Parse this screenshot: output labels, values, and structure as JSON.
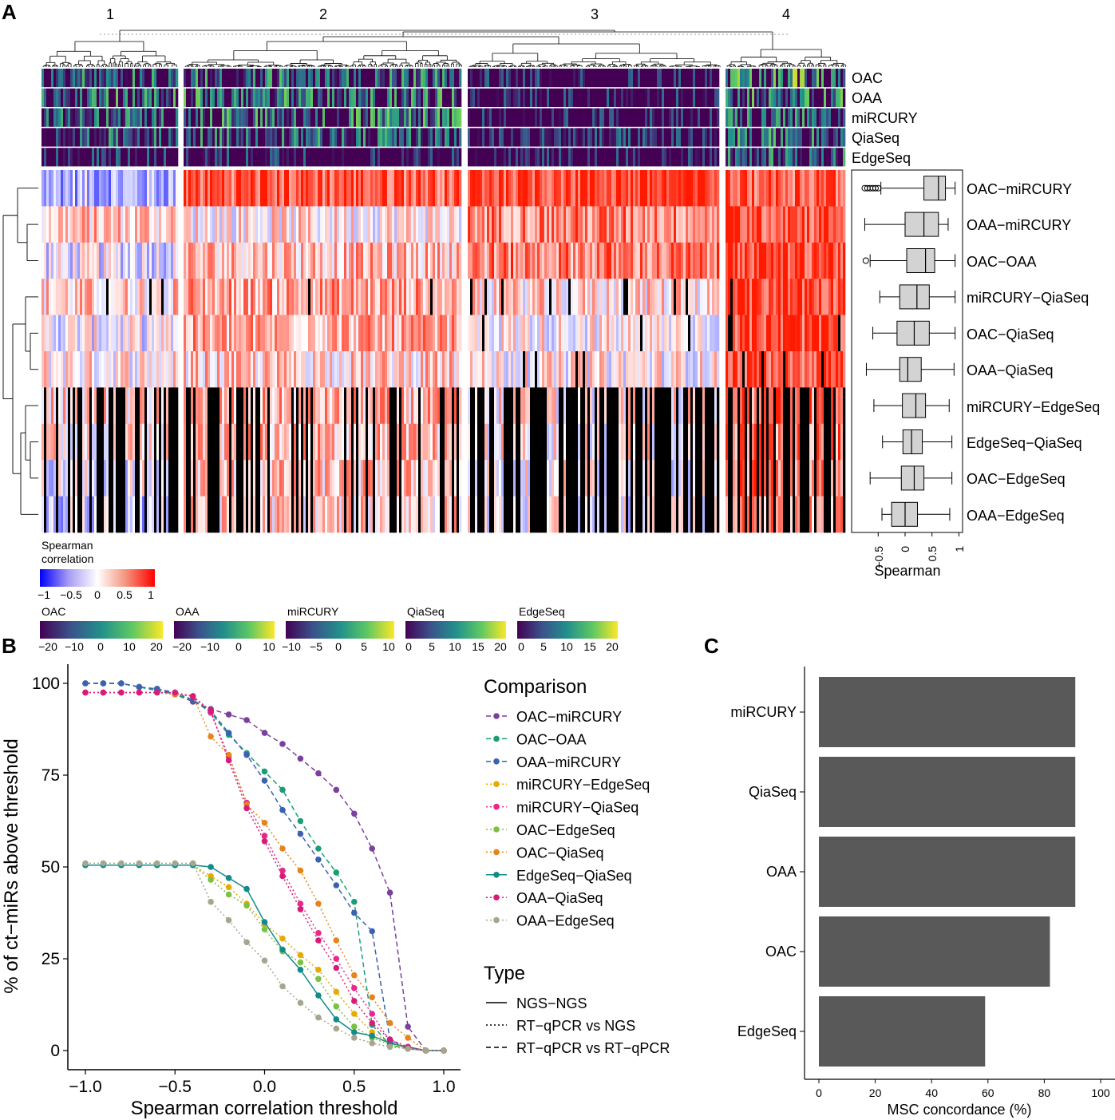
{
  "panels": {
    "a": "A",
    "b": "B",
    "c": "C"
  },
  "heatmap": {
    "clusters": [
      "1",
      "2",
      "3",
      "4"
    ],
    "annotation_rows": [
      "OAC",
      "OAA",
      "miRCURY",
      "QiaSeq",
      "EdgeSeq"
    ],
    "comparisons": [
      "OAC−miRCURY",
      "OAA−miRCURY",
      "OAC−OAA",
      "miRCURY−QiaSeq",
      "OAC−QiaSeq",
      "OAA−QiaSeq",
      "miRCURY−EdgeSeq",
      "EdgeSeq−QiaSeq",
      "OAC−EdgeSeq",
      "OAA−EdgeSeq"
    ],
    "colors": {
      "neg": "#2222ff",
      "mid": "#ffffff",
      "pos": "#ff1a00",
      "na": "#000000"
    },
    "viridis": [
      "#440154",
      "#3b528b",
      "#21908c",
      "#5dc863",
      "#fde725"
    ]
  },
  "boxplot": {
    "xlabel": "Spearman",
    "ticks": [
      "−0.5",
      "0",
      "0.5",
      "1"
    ],
    "stats": [
      {
        "min": -0.45,
        "q1": 0.35,
        "median": 0.62,
        "q3": 0.75,
        "max": 0.93,
        "outliers": [
          -0.75,
          -0.7,
          -0.65,
          -0.6,
          -0.55,
          -0.5
        ]
      },
      {
        "min": -0.75,
        "q1": 0.0,
        "median": 0.35,
        "q3": 0.62,
        "max": 0.8,
        "outliers": []
      },
      {
        "min": -0.65,
        "q1": 0.03,
        "median": 0.38,
        "q3": 0.55,
        "max": 0.93,
        "outliers": [
          -0.73
        ]
      },
      {
        "min": -0.47,
        "q1": -0.1,
        "median": 0.22,
        "q3": 0.45,
        "max": 0.93,
        "outliers": []
      },
      {
        "min": -0.6,
        "q1": -0.15,
        "median": 0.17,
        "q3": 0.45,
        "max": 0.93,
        "outliers": []
      },
      {
        "min": -0.72,
        "q1": -0.1,
        "median": 0.05,
        "q3": 0.3,
        "max": 0.91,
        "outliers": []
      },
      {
        "min": -0.58,
        "q1": -0.05,
        "median": 0.2,
        "q3": 0.38,
        "max": 0.82,
        "outliers": []
      },
      {
        "min": -0.42,
        "q1": -0.04,
        "median": 0.12,
        "q3": 0.32,
        "max": 0.87,
        "outliers": []
      },
      {
        "min": -0.65,
        "q1": -0.07,
        "median": 0.17,
        "q3": 0.35,
        "max": 0.87,
        "outliers": []
      },
      {
        "min": -0.43,
        "q1": -0.25,
        "median": 0.0,
        "q3": 0.23,
        "max": 0.83,
        "outliers": []
      }
    ]
  },
  "legends": {
    "spearman_title": [
      "Spearman",
      "correlation"
    ],
    "spearman_ticks": [
      "−1",
      "−0.5",
      "0",
      "0.5",
      "1"
    ],
    "scales": [
      {
        "name": "OAC",
        "ticks": [
          "−20",
          "−10",
          "0",
          "10",
          "20"
        ]
      },
      {
        "name": "OAA",
        "ticks": [
          "−20",
          "−10",
          "0",
          "10"
        ]
      },
      {
        "name": "miRCURY",
        "ticks": [
          "−10",
          "−5",
          "0",
          "5",
          "10"
        ]
      },
      {
        "name": "QiaSeq",
        "ticks": [
          "0",
          "5",
          "10",
          "15",
          "20"
        ]
      },
      {
        "name": "EdgeSeq",
        "ticks": [
          "0",
          "5",
          "10",
          "15",
          "20"
        ]
      }
    ]
  },
  "chart_data": [
    {
      "type": "line",
      "panel": "B",
      "xlabel": "Spearman correlation threshold",
      "ylabel": "% of ct−miRs above threshold",
      "xlim": [
        -1.0,
        1.0
      ],
      "ylim": [
        0,
        100
      ],
      "xticks": [
        "−1.0",
        "−0.5",
        "0.0",
        "0.5",
        "1.0"
      ],
      "yticks": [
        "0",
        "25",
        "50",
        "75",
        "100"
      ],
      "x": [
        -1.0,
        -0.9,
        -0.8,
        -0.7,
        -0.6,
        -0.5,
        -0.4,
        -0.3,
        -0.2,
        -0.1,
        0.0,
        0.1,
        0.2,
        0.3,
        0.4,
        0.5,
        0.6,
        0.7,
        0.8,
        0.9,
        1.0
      ],
      "legend_title": "Comparison",
      "type_title": "Type",
      "types": [
        {
          "name": "NGS−NGS",
          "dash": "solid"
        },
        {
          "name": "RT−qPCR vs NGS",
          "dash": "dotted"
        },
        {
          "name": "RT−qPCR vs RT−qPCR",
          "dash": "dashed"
        }
      ],
      "series": [
        {
          "name": "OAC−miRCURY",
          "color": "#7b3f9e",
          "dash": "dashed",
          "values": [
            100,
            100,
            100,
            99,
            98.5,
            97,
            95,
            93,
            91.5,
            90,
            86.5,
            83.5,
            79.5,
            75.5,
            71,
            64.5,
            55,
            43,
            6.5,
            0,
            0
          ]
        },
        {
          "name": "OAC−OAA",
          "color": "#1b9e77",
          "dash": "dashed",
          "values": [
            100,
            100,
            100,
            99,
            98,
            97,
            95.5,
            92,
            86,
            81,
            76,
            71,
            62.5,
            55,
            48.5,
            40.5,
            7,
            1.5,
            0.5,
            0,
            0
          ]
        },
        {
          "name": "OAA−miRCURY",
          "color": "#3b62b0",
          "dash": "dashed",
          "values": [
            100,
            100,
            100,
            99,
            98.5,
            97.5,
            95.5,
            92.5,
            86.5,
            80.5,
            73.5,
            65.5,
            59,
            52,
            45,
            37.5,
            32.5,
            3,
            0.5,
            0,
            0
          ]
        },
        {
          "name": "miRCURY−EdgeSeq",
          "color": "#e6ab02",
          "dash": "dotted",
          "values": [
            50.5,
            50.5,
            50.5,
            50.5,
            50.5,
            50.5,
            50.5,
            47.5,
            44.5,
            40,
            34.5,
            30.5,
            26,
            22,
            16,
            10,
            5,
            2,
            0.5,
            0,
            0
          ]
        },
        {
          "name": "miRCURY−QiaSeq",
          "color": "#e7298a",
          "dash": "dotted",
          "values": [
            97.5,
            97.5,
            97.5,
            97.5,
            97.5,
            97,
            96.5,
            92,
            80,
            67.5,
            58.5,
            49,
            40,
            32,
            25,
            17,
            10,
            2.5,
            0.5,
            0,
            0
          ]
        },
        {
          "name": "OAC−EdgeSeq",
          "color": "#7cc242",
          "dash": "dotted",
          "values": [
            50.5,
            50.5,
            50.5,
            50.5,
            50.5,
            50.5,
            50.5,
            46.5,
            42.5,
            39.5,
            33,
            27,
            24,
            19.5,
            12,
            6.5,
            3.5,
            1.5,
            0.5,
            0,
            0
          ]
        },
        {
          "name": "OAC−QiaSeq",
          "color": "#e6841a",
          "dash": "dotted",
          "values": [
            97.5,
            97.5,
            97.5,
            97.5,
            97.5,
            97,
            96.5,
            85.5,
            80.5,
            67,
            62,
            55,
            49,
            40,
            30,
            20.5,
            14.5,
            7.5,
            3.5,
            0,
            0
          ]
        },
        {
          "name": "EdgeSeq−QiaSeq",
          "color": "#118c8b",
          "dash": "solid",
          "values": [
            50.5,
            50.5,
            50.5,
            50.5,
            50.5,
            50.5,
            50.5,
            50,
            47,
            44,
            35,
            27.5,
            22,
            15,
            8.5,
            5,
            4,
            2,
            1,
            0,
            0
          ]
        },
        {
          "name": "OAA−QiaSeq",
          "color": "#d81b7a",
          "dash": "dotted",
          "values": [
            97.5,
            97.5,
            97.5,
            97.5,
            97.5,
            97.5,
            96.5,
            92.5,
            79,
            66,
            57,
            47.5,
            38.5,
            30,
            22.5,
            13.5,
            7.5,
            3,
            1,
            0,
            0
          ]
        },
        {
          "name": "OAA−EdgeSeq",
          "color": "#a6a68f",
          "dash": "dotted",
          "values": [
            51,
            51,
            51,
            51,
            51,
            51,
            51,
            40.5,
            35.5,
            29.5,
            24.5,
            17.5,
            13,
            9,
            6,
            3.5,
            2,
            1,
            0.5,
            0,
            0
          ]
        }
      ]
    },
    {
      "type": "bar",
      "panel": "C",
      "orientation": "horizontal",
      "categories": [
        "miRCURY",
        "QiaSeq",
        "OAA",
        "OAC",
        "EdgeSeq"
      ],
      "values": [
        91,
        91,
        91,
        82,
        59
      ],
      "xlabel": "MSC concordance (%)",
      "xlim": [
        0,
        100
      ],
      "xticks": [
        "0",
        "20",
        "40",
        "60",
        "80",
        "100"
      ],
      "color": "#595959"
    }
  ]
}
